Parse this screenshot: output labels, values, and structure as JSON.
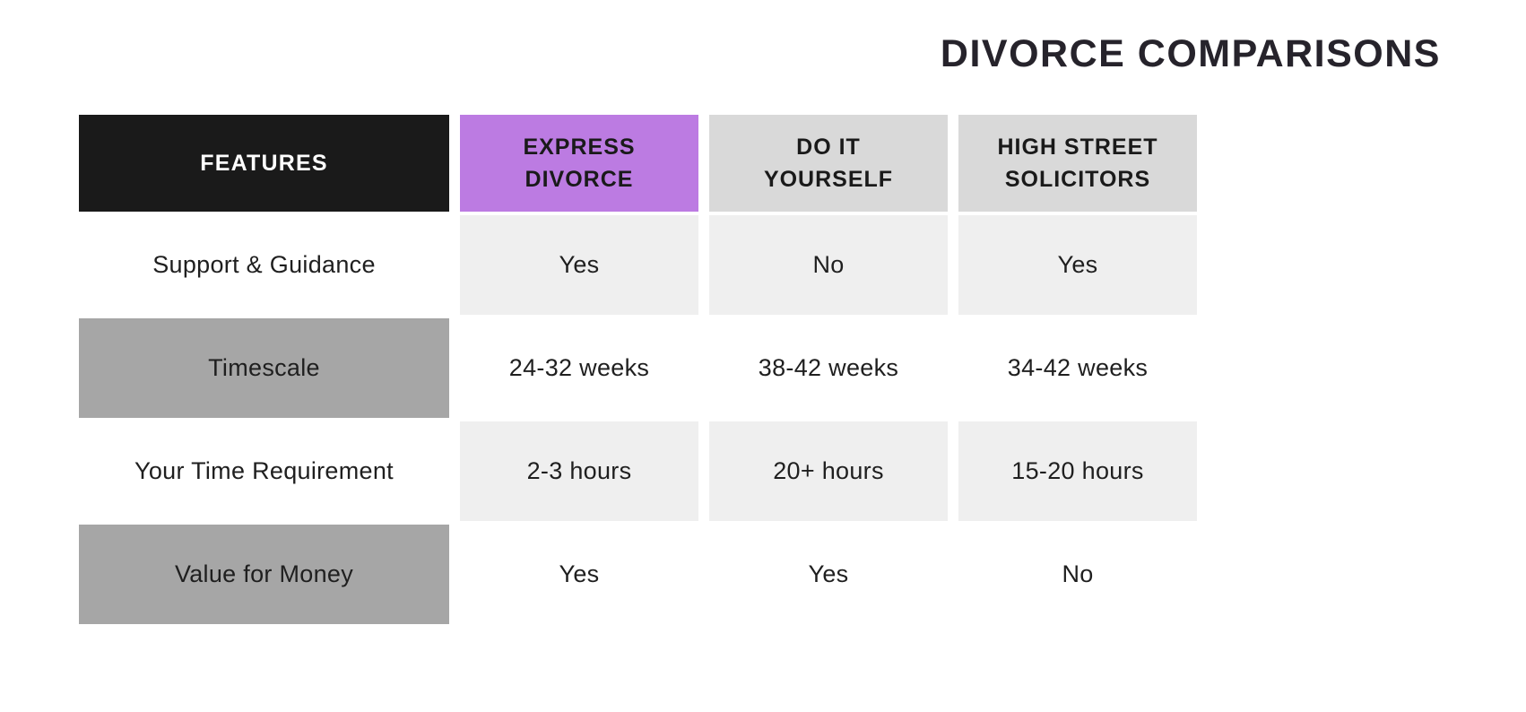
{
  "title": {
    "text": "DIVORCE COMPARISONS"
  },
  "chart_data": {
    "type": "table",
    "title": "DIVORCE COMPARISONS",
    "columns": [
      "FEATURES",
      "EXPRESS DIVORCE",
      "DO IT YOURSELF",
      "HIGH STREET SOLICITORS"
    ],
    "rows": [
      [
        "Support & Guidance",
        "Yes",
        "No",
        "Yes"
      ],
      [
        "Timescale",
        "24-32 weeks",
        "38-42 weeks",
        "34-42 weeks"
      ],
      [
        "Your Time Requirement",
        "2-3 hours",
        "20+ hours",
        "15-20 hours"
      ],
      [
        "Value for Money",
        "Yes",
        "Yes",
        "No"
      ]
    ],
    "highlight_column": "EXPRESS DIVORCE",
    "legend_position": "none",
    "grid": "off"
  },
  "colors": {
    "background": "#ffffff",
    "title_text": "#26232b",
    "features_header_bg": "#1a1a1a",
    "features_header_fg": "#ffffff",
    "express_header_bg": "#bc7be2",
    "plain_header_bg": "#d9d9d9",
    "header_fg": "#1a1a1a",
    "alt_cell_bg": "#efefef",
    "feature_alt_bg": "#a6a6a6",
    "body_text": "#1f1f1f",
    "white_cell_bg": "#ffffff"
  }
}
